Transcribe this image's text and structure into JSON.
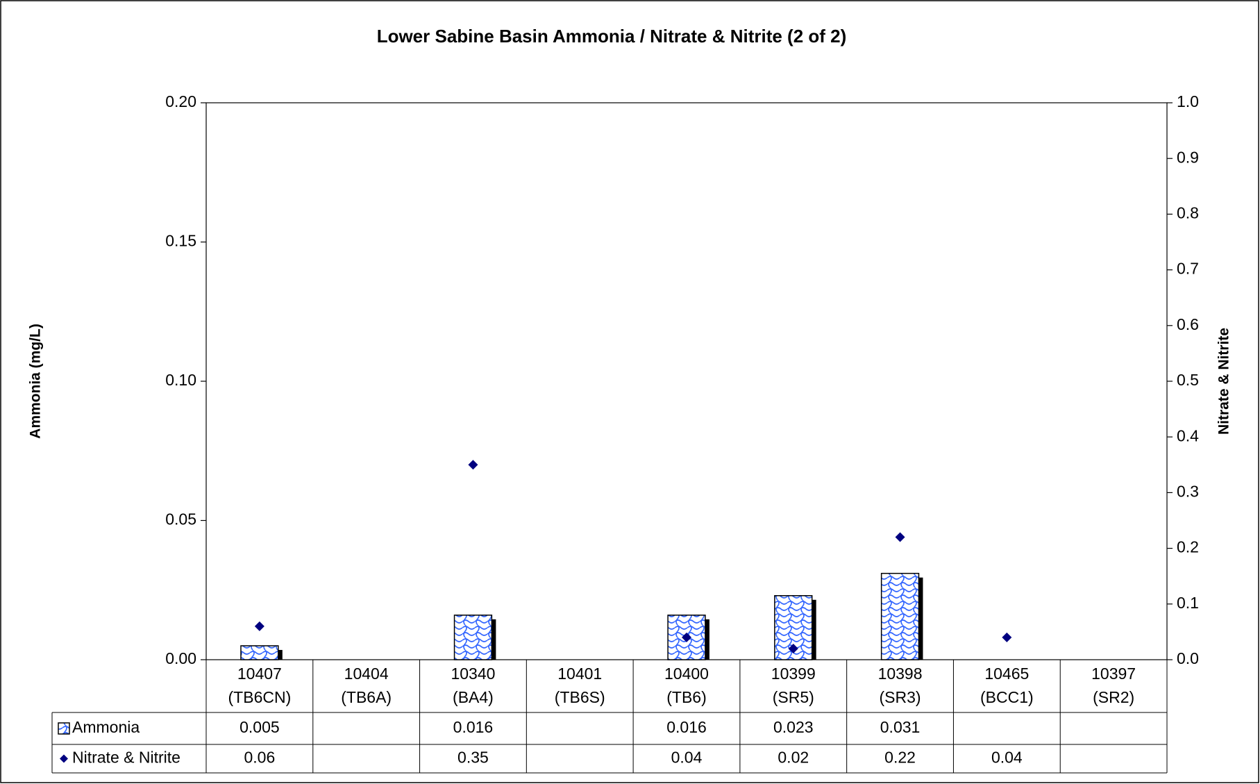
{
  "chart_data": {
    "type": "bar",
    "title": "Lower Sabine Basin Ammonia / Nitrate & Nitrite (2 of 2)",
    "y_label": "Ammonia (mg/L)",
    "y2_label": "Nitrate & Nitrite",
    "categories": [
      [
        "10407",
        "(TB6CN)"
      ],
      [
        "10404",
        "(TB6A)"
      ],
      [
        "10340",
        "(BA4)"
      ],
      [
        "10401",
        "(TB6S)"
      ],
      [
        "10400",
        "(TB6)"
      ],
      [
        "10399",
        "(SR5)"
      ],
      [
        "10398",
        "(SR3)"
      ],
      [
        "10465",
        "(BCC1)"
      ],
      [
        "10397",
        "(SR2)"
      ]
    ],
    "series": [
      {
        "name": "Ammonia",
        "color": "#3366ff",
        "values": [
          0.005,
          null,
          0.016,
          null,
          0.016,
          0.023,
          0.031,
          null,
          null
        ]
      },
      {
        "name": "Nitrate & Nitrite",
        "type": "scatter",
        "axis": "y2",
        "color": "#000080",
        "values": [
          0.06,
          null,
          0.35,
          null,
          0.04,
          0.02,
          0.22,
          0.04,
          null
        ]
      }
    ],
    "ylim": [
      0,
      0.2
    ],
    "yticks": [
      {
        "value": 0,
        "label": "0.00"
      },
      {
        "value": 0.05,
        "label": "0.05"
      },
      {
        "value": 0.1,
        "label": "0.10"
      },
      {
        "value": 0.15,
        "label": "0.15"
      },
      {
        "value": 0.2,
        "label": "0.20"
      }
    ],
    "y2lim": [
      0,
      1
    ],
    "y2ticks": [
      {
        "value": 0,
        "label": "0.0"
      },
      0.1,
      0.2,
      0.3,
      0.4,
      0.5,
      0.6,
      0.7,
      0.8,
      0.9,
      {
        "value": 1,
        "label": "1.0"
      }
    ],
    "grid": false
  }
}
